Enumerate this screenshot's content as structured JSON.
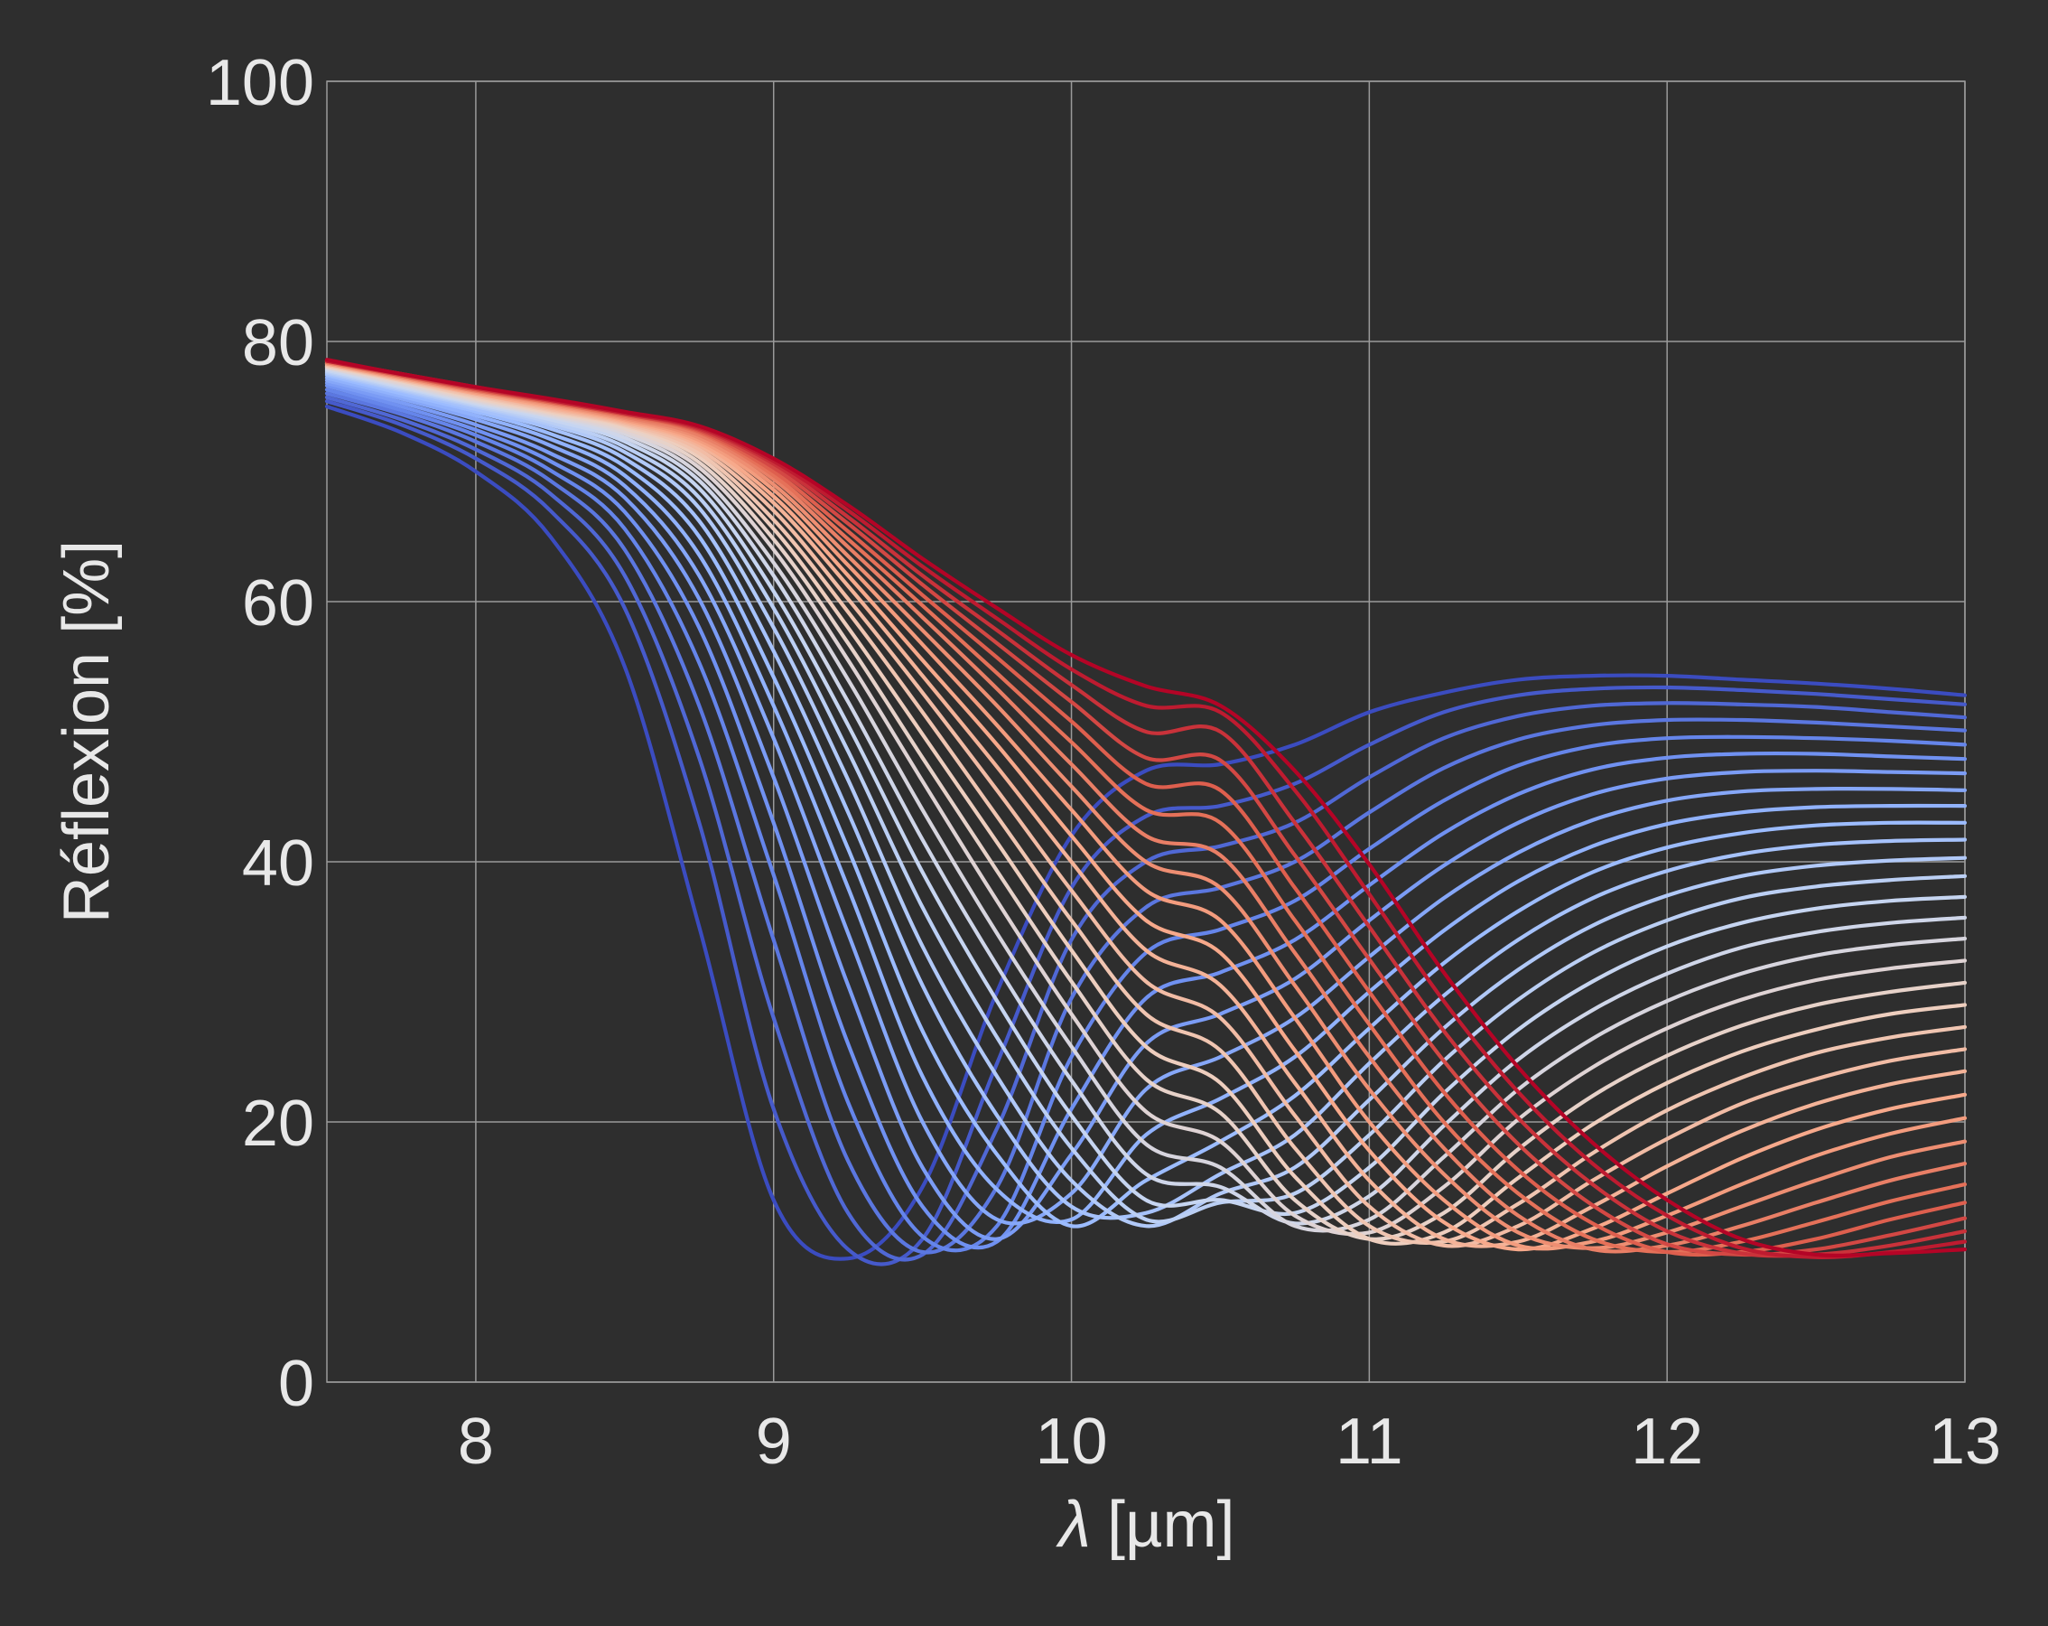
{
  "chart_data": {
    "type": "line",
    "xlabel_symbol": "λ",
    "xlabel_unit": "[µm]",
    "ylabel": "Réflexion [%]",
    "xlim": [
      7.5,
      13
    ],
    "ylim": [
      0,
      100
    ],
    "xticks": [
      "8",
      "9",
      "10",
      "11",
      "12",
      "13"
    ],
    "yticks": [
      "0",
      "20",
      "40",
      "60",
      "80",
      "100"
    ],
    "grid": true,
    "background": "#2e2e2e",
    "colormap": "coolwarm",
    "colormap_stops": [
      "#3b4cc0",
      "#6a8bef",
      "#9abbff",
      "#c9d7f0",
      "#edd1c2",
      "#f7a889",
      "#e26952",
      "#b40426"
    ],
    "x": [
      7.5,
      7.75,
      8.0,
      8.25,
      8.5,
      8.75,
      9.0,
      9.25,
      9.5,
      9.75,
      10.0,
      10.25,
      10.5,
      10.75,
      11.0,
      11.25,
      11.5,
      11.75,
      12.0,
      12.25,
      12.5,
      12.75,
      13.0
    ],
    "series": [
      {
        "values": [
          75.0,
          73.0,
          70.0,
          65.0,
          55.0,
          35.0,
          14.0,
          9.5,
          15.0,
          30.0,
          42.0,
          47.0,
          47.5,
          49.0,
          51.5,
          53.0,
          54.0,
          54.3,
          54.3,
          54.0,
          53.7,
          53.3,
          52.8
        ]
      },
      {
        "values": [
          75.4,
          73.6,
          71.0,
          67.0,
          59.5,
          43.0,
          21.0,
          10.2,
          11.0,
          24.5,
          38.0,
          43.5,
          44.3,
          46.0,
          49.0,
          51.5,
          52.8,
          53.3,
          53.4,
          53.2,
          52.9,
          52.5,
          52.1
        ]
      },
      {
        "values": [
          75.7,
          74.0,
          71.7,
          68.3,
          62.0,
          48.0,
          28.0,
          13.0,
          9.8,
          19.5,
          34.0,
          40.0,
          41.2,
          43.0,
          46.5,
          49.5,
          51.2,
          52.0,
          52.2,
          52.1,
          51.9,
          51.5,
          51.1
        ]
      },
      {
        "values": [
          76.0,
          74.4,
          72.3,
          69.3,
          64.0,
          52.0,
          34.0,
          17.0,
          10.0,
          15.0,
          29.5,
          36.5,
          38.0,
          40.0,
          43.8,
          47.2,
          49.4,
          50.5,
          50.9,
          50.9,
          50.7,
          50.4,
          50.1
        ]
      },
      {
        "values": [
          76.3,
          74.7,
          72.8,
          70.1,
          65.6,
          55.3,
          39.0,
          21.5,
          11.2,
          12.0,
          25.0,
          33.0,
          34.8,
          37.0,
          41.0,
          44.7,
          47.4,
          48.9,
          49.5,
          49.6,
          49.5,
          49.3,
          49.0
        ]
      },
      {
        "values": [
          76.6,
          75.0,
          73.2,
          70.8,
          66.9,
          58.0,
          43.0,
          26.0,
          13.5,
          10.8,
          21.0,
          29.5,
          31.5,
          34.0,
          38.2,
          42.2,
          45.2,
          47.1,
          48.0,
          48.3,
          48.3,
          48.1,
          47.9
        ]
      },
      {
        "values": [
          76.8,
          75.3,
          73.6,
          71.4,
          68.0,
          60.2,
          46.5,
          30.5,
          16.5,
          11.0,
          17.5,
          26.0,
          28.3,
          31.0,
          35.5,
          39.7,
          43.0,
          45.2,
          46.4,
          46.9,
          47.0,
          46.9,
          46.8
        ]
      },
      {
        "values": [
          77.0,
          75.6,
          74.0,
          72.0,
          68.9,
          62.0,
          49.5,
          34.5,
          20.0,
          12.5,
          14.5,
          22.5,
          25.0,
          28.0,
          32.7,
          37.2,
          40.7,
          43.2,
          44.7,
          45.4,
          45.6,
          45.6,
          45.5
        ]
      },
      {
        "values": [
          77.2,
          75.8,
          74.3,
          72.5,
          69.7,
          63.6,
          52.0,
          38.0,
          23.5,
          14.8,
          12.5,
          19.0,
          21.8,
          25.0,
          30.0,
          34.7,
          38.5,
          41.2,
          42.9,
          43.8,
          44.2,
          44.3,
          44.3
        ]
      },
      {
        "values": [
          77.4,
          76.0,
          74.6,
          72.9,
          70.4,
          65.0,
          54.2,
          41.0,
          27.0,
          17.5,
          12.0,
          15.5,
          18.5,
          22.0,
          27.2,
          32.2,
          36.2,
          39.2,
          41.1,
          42.2,
          42.8,
          43.0,
          43.0
        ]
      },
      {
        "values": [
          77.5,
          76.2,
          74.8,
          73.3,
          71.0,
          66.2,
          56.2,
          43.8,
          30.5,
          20.5,
          13.5,
          13.0,
          16.0,
          19.0,
          24.5,
          29.7,
          34.0,
          37.2,
          39.3,
          40.6,
          41.3,
          41.6,
          41.7
        ]
      },
      {
        "values": [
          77.6,
          76.3,
          75.0,
          73.6,
          71.5,
          67.2,
          58.0,
          46.3,
          33.5,
          23.5,
          15.5,
          12.0,
          14.5,
          16.5,
          21.7,
          27.2,
          31.7,
          35.1,
          37.4,
          38.9,
          39.7,
          40.1,
          40.3
        ]
      },
      {
        "values": [
          77.7,
          76.4,
          75.1,
          73.8,
          71.9,
          68.0,
          59.5,
          48.5,
          36.5,
          26.5,
          18.0,
          12.5,
          13.8,
          14.5,
          19.0,
          24.7,
          29.4,
          33.0,
          35.5,
          37.2,
          38.1,
          38.6,
          38.9
        ]
      },
      {
        "values": [
          77.8,
          76.5,
          75.2,
          74.0,
          72.3,
          68.7,
          60.8,
          50.5,
          39.2,
          29.3,
          20.5,
          14.0,
          14.0,
          13.0,
          16.5,
          22.2,
          27.1,
          30.8,
          33.5,
          35.3,
          36.4,
          37.0,
          37.3
        ]
      },
      {
        "values": [
          77.9,
          76.6,
          75.3,
          74.2,
          72.6,
          69.3,
          62.0,
          52.3,
          41.7,
          32.0,
          23.2,
          16.0,
          15.0,
          12.2,
          14.3,
          19.7,
          24.8,
          28.6,
          31.4,
          33.4,
          34.6,
          35.3,
          35.7
        ]
      },
      {
        "values": [
          78.0,
          76.7,
          75.4,
          74.3,
          72.9,
          69.8,
          63.0,
          54.0,
          44.0,
          34.5,
          25.8,
          18.3,
          16.5,
          12.0,
          12.5,
          17.3,
          22.5,
          26.4,
          29.3,
          31.4,
          32.8,
          33.6,
          34.1
        ]
      },
      {
        "values": [
          78.0,
          76.8,
          75.5,
          74.4,
          73.1,
          70.3,
          64.0,
          55.5,
          46.2,
          37.0,
          28.3,
          20.8,
          18.5,
          12.8,
          11.5,
          15.0,
          20.2,
          24.2,
          27.2,
          29.4,
          30.9,
          31.8,
          32.4
        ]
      },
      {
        "values": [
          78.1,
          76.9,
          75.6,
          74.5,
          73.3,
          70.7,
          64.8,
          56.8,
          48.0,
          39.3,
          30.8,
          23.3,
          20.7,
          14.0,
          11.0,
          13.0,
          17.9,
          22.0,
          25.1,
          27.4,
          29.0,
          30.0,
          30.7
        ]
      },
      {
        "values": [
          78.1,
          77.0,
          75.7,
          74.6,
          73.5,
          71.1,
          65.6,
          58.0,
          49.8,
          41.5,
          33.2,
          25.8,
          23.0,
          15.8,
          11.0,
          11.5,
          15.7,
          19.8,
          23.0,
          25.4,
          27.1,
          28.3,
          29.0
        ]
      },
      {
        "values": [
          78.2,
          77.0,
          75.8,
          74.7,
          73.6,
          71.4,
          66.3,
          59.2,
          51.5,
          43.5,
          35.5,
          28.3,
          25.5,
          18.0,
          12.0,
          10.8,
          13.7,
          17.6,
          20.9,
          23.4,
          25.3,
          26.5,
          27.3
        ]
      },
      {
        "values": [
          78.2,
          77.1,
          75.9,
          74.8,
          73.7,
          71.7,
          67.0,
          60.2,
          53.0,
          45.5,
          37.8,
          30.8,
          28.0,
          20.5,
          13.5,
          10.5,
          12.0,
          15.5,
          18.7,
          21.4,
          23.3,
          24.7,
          25.6
        ]
      },
      {
        "values": [
          78.3,
          77.1,
          76.0,
          74.9,
          73.8,
          72.0,
          67.6,
          61.2,
          54.3,
          47.3,
          40.0,
          33.2,
          30.5,
          23.0,
          15.5,
          11.0,
          10.8,
          13.5,
          16.6,
          19.3,
          21.4,
          22.9,
          23.9
        ]
      },
      {
        "values": [
          78.3,
          77.2,
          76.0,
          75.0,
          73.9,
          72.2,
          68.1,
          62.0,
          55.5,
          49.0,
          42.0,
          35.5,
          33.0,
          25.5,
          17.8,
          12.3,
          10.2,
          11.8,
          14.5,
          17.2,
          19.4,
          21.0,
          22.1
        ]
      },
      {
        "values": [
          78.3,
          77.2,
          76.1,
          75.1,
          74.0,
          72.4,
          68.6,
          62.8,
          56.7,
          50.5,
          44.0,
          37.8,
          35.5,
          28.0,
          20.0,
          14.0,
          10.5,
          10.8,
          12.8,
          15.2,
          17.4,
          19.1,
          20.3
        ]
      },
      {
        "values": [
          78.4,
          77.3,
          76.2,
          75.2,
          74.1,
          72.6,
          69.0,
          63.5,
          57.8,
          52.0,
          45.8,
          40.0,
          38.0,
          30.5,
          22.5,
          16.0,
          11.5,
          10.3,
          11.5,
          13.5,
          15.5,
          17.3,
          18.5
        ]
      },
      {
        "values": [
          78.4,
          77.3,
          76.2,
          75.3,
          74.2,
          72.8,
          69.4,
          64.2,
          58.8,
          53.3,
          47.5,
          42.0,
          40.5,
          33.0,
          25.0,
          18.0,
          12.8,
          10.2,
          10.5,
          12.0,
          13.8,
          15.5,
          16.8
        ]
      },
      {
        "values": [
          78.4,
          77.4,
          76.3,
          75.3,
          74.3,
          73.0,
          69.7,
          64.8,
          59.7,
          54.5,
          49.2,
          44.0,
          43.0,
          35.5,
          27.5,
          20.0,
          14.5,
          11.0,
          10.0,
          10.8,
          12.3,
          13.9,
          15.2
        ]
      },
      {
        "values": [
          78.5,
          77.4,
          76.3,
          75.4,
          74.4,
          73.1,
          70.0,
          65.4,
          60.5,
          55.7,
          50.8,
          46.0,
          45.5,
          38.0,
          30.0,
          22.3,
          16.3,
          12.2,
          10.0,
          10.0,
          11.0,
          12.5,
          13.8
        ]
      },
      {
        "values": [
          78.5,
          77.4,
          76.4,
          75.4,
          74.4,
          73.2,
          70.3,
          66.0,
          61.3,
          56.8,
          52.3,
          48.0,
          47.8,
          40.5,
          32.5,
          24.7,
          18.3,
          13.6,
          10.6,
          9.8,
          10.2,
          11.3,
          12.6
        ]
      },
      {
        "values": [
          78.5,
          77.5,
          76.4,
          75.5,
          74.5,
          73.3,
          70.6,
          66.5,
          62.0,
          57.8,
          53.6,
          50.0,
          50.0,
          43.0,
          35.0,
          27.0,
          20.3,
          15.2,
          11.6,
          9.9,
          9.8,
          10.5,
          11.6
        ]
      },
      {
        "values": [
          78.5,
          77.5,
          76.5,
          75.5,
          74.5,
          73.4,
          70.8,
          67.0,
          62.7,
          58.7,
          54.8,
          52.0,
          51.5,
          45.5,
          37.5,
          29.3,
          22.3,
          16.8,
          12.8,
          10.3,
          9.6,
          10.0,
          10.8
        ]
      },
      {
        "values": [
          78.6,
          77.5,
          76.5,
          75.6,
          74.6,
          73.5,
          71.0,
          67.4,
          63.3,
          59.5,
          55.9,
          53.5,
          52.0,
          47.0,
          39.8,
          31.5,
          24.2,
          18.4,
          14.0,
          11.0,
          9.8,
          9.9,
          10.2
        ]
      }
    ]
  }
}
